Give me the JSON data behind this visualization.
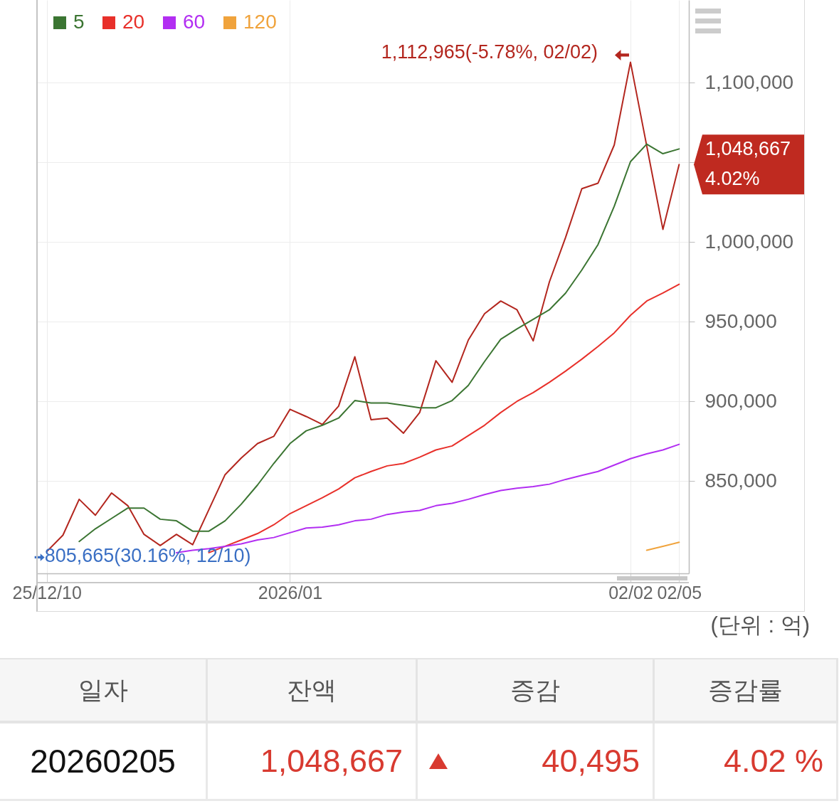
{
  "chart_data": [
    {
      "type": "line",
      "categories": [
        "25/12/10",
        null,
        null,
        null,
        null,
        null,
        null,
        null,
        null,
        null,
        null,
        null,
        null,
        null,
        null,
        "2026/01",
        null,
        null,
        null,
        null,
        null,
        null,
        null,
        null,
        null,
        null,
        null,
        null,
        null,
        null,
        null,
        null,
        null,
        null,
        null,
        null,
        "02/02",
        null,
        null,
        "02/05"
      ],
      "series": [
        {
          "color": "#b3261e",
          "values": [
            805665,
            816000,
            838500,
            828500,
            842500,
            834500,
            816500,
            809500,
            816500,
            810000,
            832000,
            854000,
            864500,
            873500,
            878000,
            895000,
            890500,
            885500,
            897000,
            928000,
            888500,
            889500,
            880000,
            893000,
            925500,
            912000,
            938500,
            955000,
            963000,
            957500,
            938000,
            975000,
            1003000,
            1033500,
            1037000,
            1061000,
            1112965,
            1060500,
            1008000,
            1048667
          ]
        },
        {
          "name": "5",
          "color": "#3b7532",
          "values": [
            null,
            null,
            812000,
            820000,
            826500,
            833000,
            833000,
            826000,
            825000,
            818500,
            818500,
            825000,
            835500,
            847500,
            861000,
            873500,
            881500,
            885000,
            889500,
            900500,
            899000,
            899000,
            897500,
            896000,
            896000,
            900500,
            910000,
            925000,
            939000,
            945500,
            951500,
            957500,
            968000,
            982500,
            998500,
            1022500,
            1050500,
            1061500,
            1055500,
            1058500
          ]
        },
        {
          "name": "20",
          "color": "#e8302a",
          "values": [
            null,
            null,
            null,
            null,
            null,
            null,
            null,
            null,
            null,
            null,
            805000,
            809000,
            813000,
            817000,
            822500,
            829500,
            834500,
            839500,
            845000,
            852000,
            856000,
            859500,
            861000,
            865000,
            869500,
            872000,
            878500,
            885000,
            893000,
            900000,
            905500,
            912000,
            919000,
            926500,
            934500,
            943000,
            954000,
            963000,
            968000,
            973500
          ]
        },
        {
          "name": "60",
          "color": "#b22ef2",
          "values": [
            null,
            null,
            null,
            null,
            null,
            null,
            null,
            null,
            805000,
            806500,
            807500,
            809000,
            810500,
            813000,
            814500,
            817500,
            820500,
            821000,
            822500,
            825000,
            826000,
            829000,
            830500,
            831500,
            834500,
            836000,
            838500,
            841500,
            844000,
            845500,
            846500,
            848000,
            851000,
            853500,
            856000,
            860000,
            864000,
            867000,
            869500,
            873000
          ]
        },
        {
          "name": "120",
          "color": "#f0a33c",
          "values": [
            null,
            null,
            null,
            null,
            null,
            null,
            null,
            null,
            null,
            null,
            null,
            null,
            null,
            null,
            null,
            null,
            null,
            null,
            null,
            null,
            null,
            null,
            null,
            null,
            null,
            null,
            null,
            null,
            null,
            null,
            null,
            null,
            null,
            null,
            null,
            null,
            null,
            806500,
            809000,
            811500
          ]
        }
      ],
      "ylim": [
        792000,
        1152000
      ],
      "yticks": [
        {
          "value": 850000,
          "label": "850,000"
        },
        {
          "value": 900000,
          "label": "900,000"
        },
        {
          "value": 950000,
          "label": "950,000"
        },
        {
          "value": 1000000,
          "label": "1,000,000"
        },
        {
          "value": 1050000,
          "label": null
        },
        {
          "value": 1100000,
          "label": "1,100,000"
        }
      ],
      "grid": true,
      "legend": "top left",
      "annotations": [
        {
          "text": "1,112,965(-5.78%, 02/02)",
          "x": "02/02",
          "y": 1112965
        },
        {
          "text": "805,665(30.16%, 12/10)",
          "x": "25/12/10",
          "y": 805665
        },
        {
          "text": "1,048,667",
          "x": "02/05",
          "y": 1048667
        },
        "4.02%",
        "(단위 : 억)"
      ]
    },
    {
      "type": "other",
      "categories": [
        "일자",
        "잔액",
        "증감",
        "증감률"
      ],
      "annotations": [
        "20260205",
        "1,048,667",
        "40,495",
        "4.02 %"
      ]
    }
  ]
}
